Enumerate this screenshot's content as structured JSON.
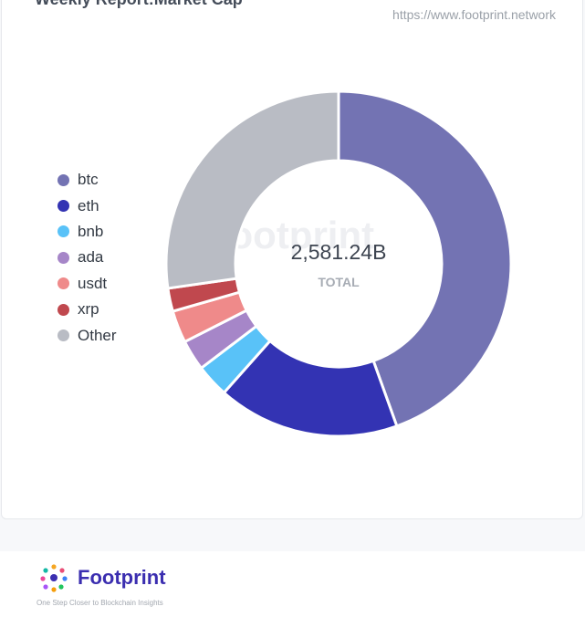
{
  "header": {
    "title": "Weekly Report:Market Cap",
    "source": "https://www.footprint.network"
  },
  "center": {
    "value": "2,581.24B",
    "label": "TOTAL",
    "watermark": "Footprint"
  },
  "footer": {
    "brand": "Footprint",
    "tagline": "One Step Closer to Blockchain Insights"
  },
  "chart_data": {
    "type": "pie",
    "variant": "donut",
    "total_label": "2,581.24B",
    "legend_position": "left",
    "categories": [
      "btc",
      "eth",
      "bnb",
      "ada",
      "usdt",
      "xrp",
      "Other"
    ],
    "values": [
      1149,
      440,
      80,
      74,
      78,
      56,
      704
    ],
    "colors": [
      "#7373b3",
      "#3333b3",
      "#59c2f8",
      "#a686c8",
      "#ef8a8a",
      "#c0484e",
      "#b9bcc4"
    ]
  }
}
